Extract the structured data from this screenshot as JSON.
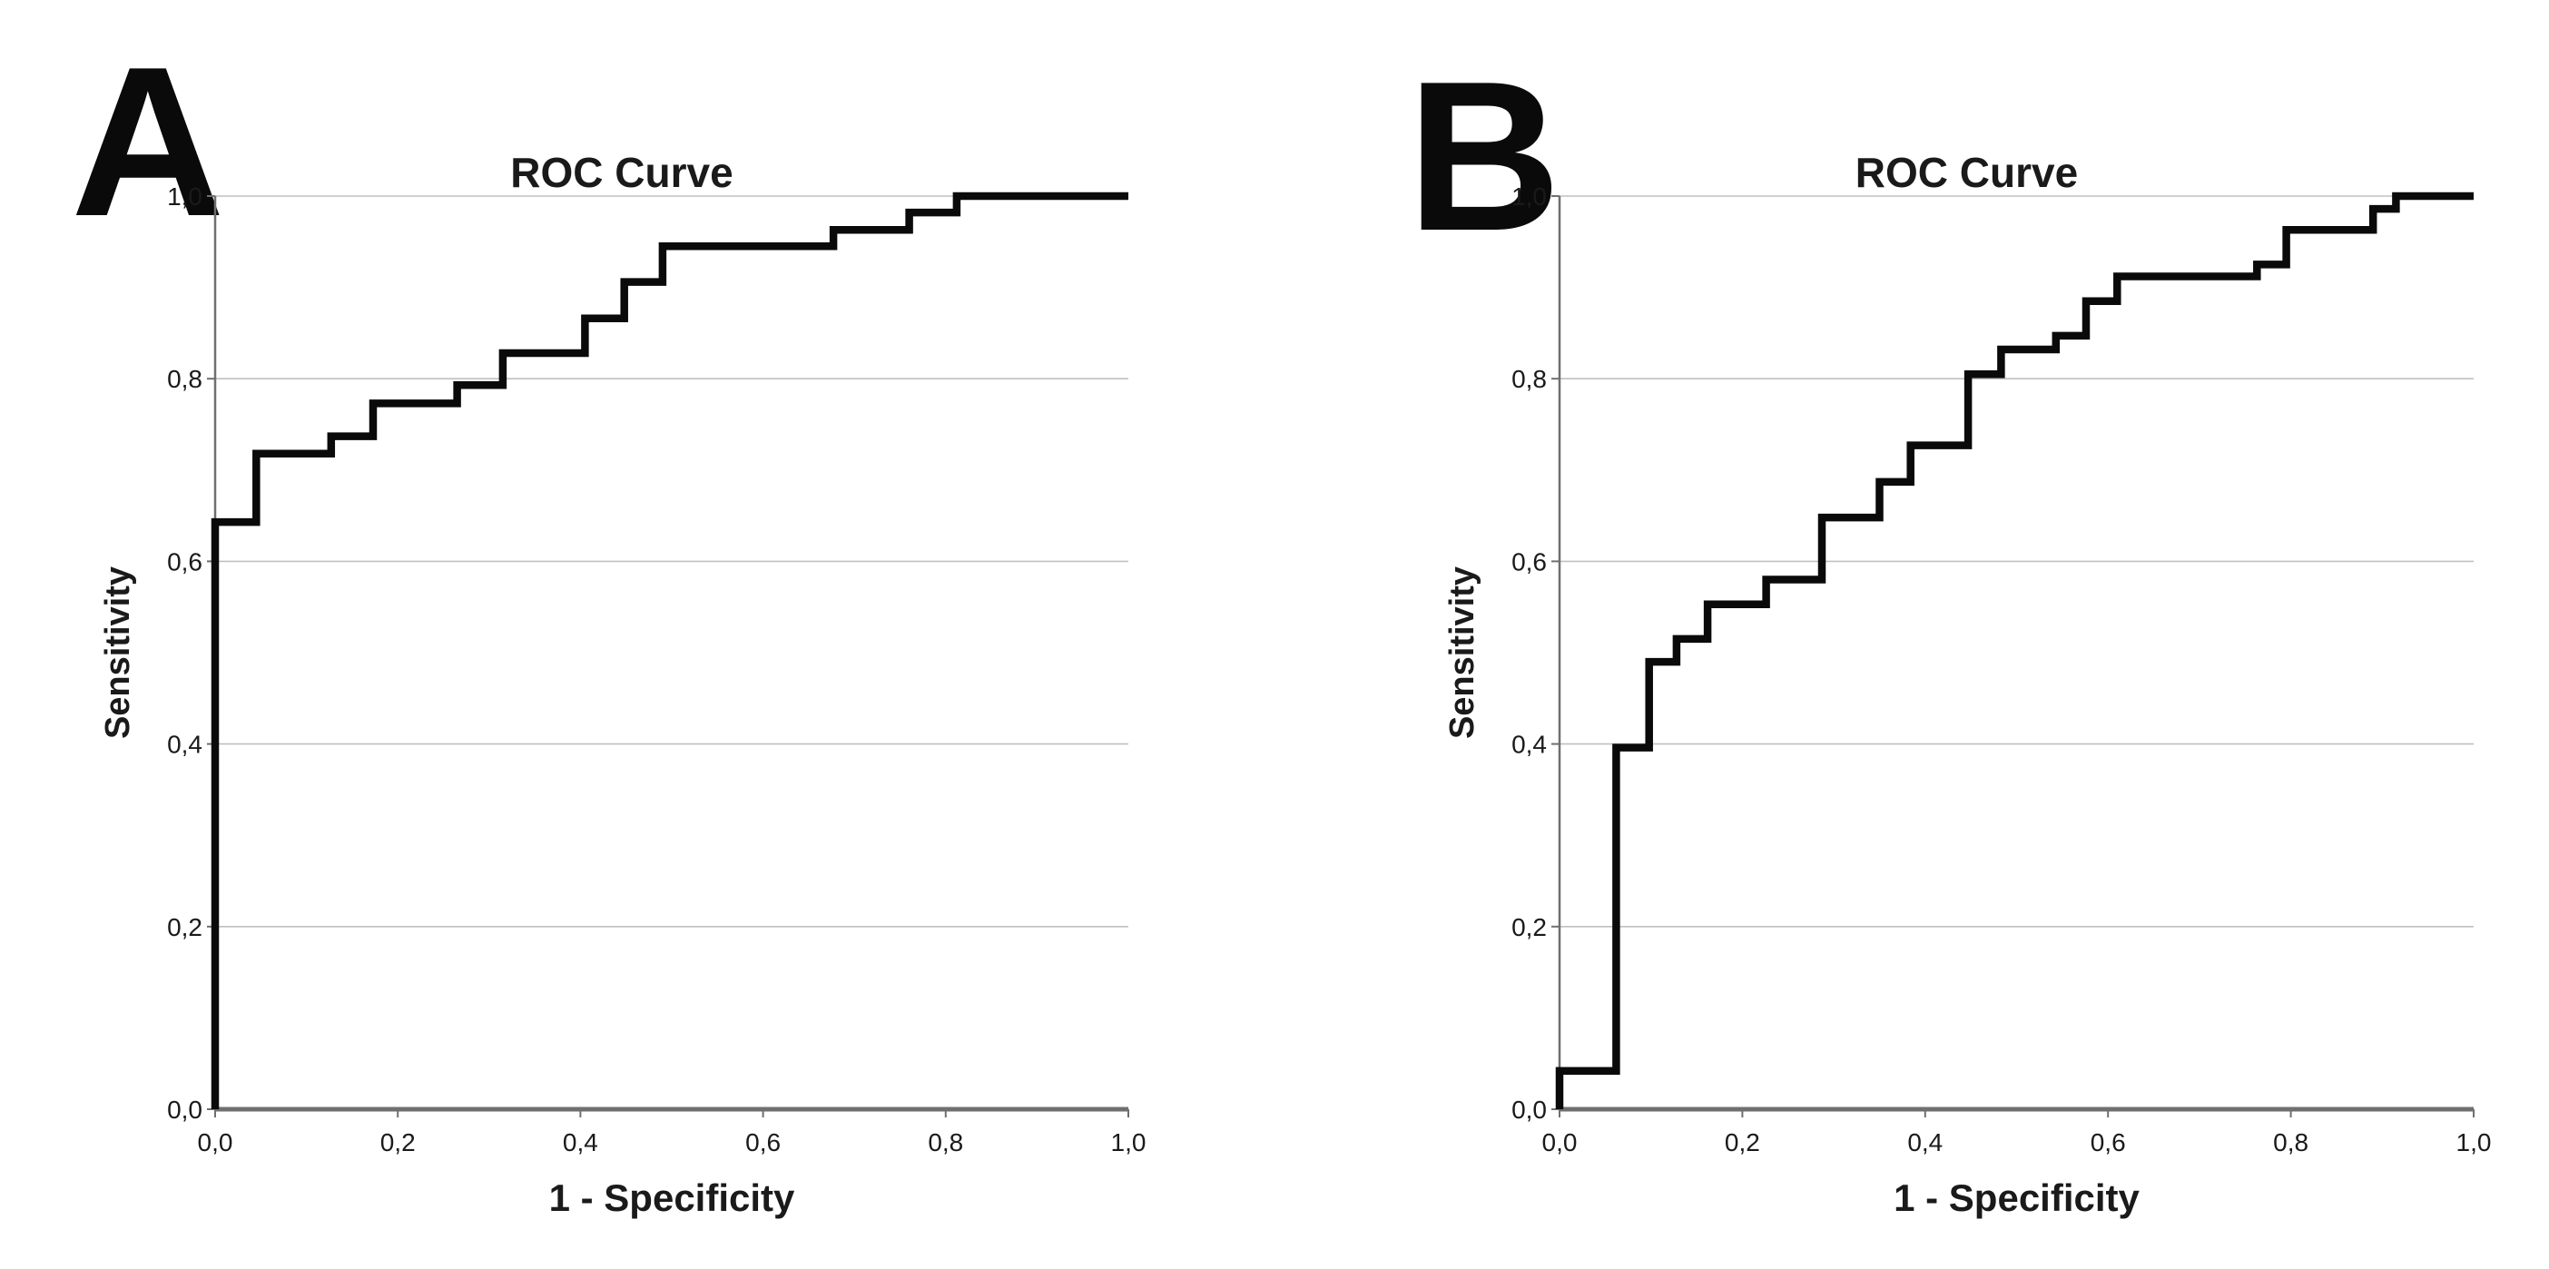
{
  "figure": {
    "background": "#ffffff",
    "colors": {
      "curve": "#0a0a0a",
      "axis": "#6f6f6f",
      "grid": "#c0c0c0",
      "text": "#1a1a1a"
    }
  },
  "chart_data": [
    {
      "panel": "A",
      "type": "line",
      "subtype": "roc-step-curve",
      "title": "ROC Curve",
      "xlabel": "1 - Specificity",
      "ylabel": "Sensitivity",
      "xlim": [
        0,
        1
      ],
      "ylim": [
        0,
        1
      ],
      "tick_values": [
        0,
        0.2,
        0.4,
        0.6,
        0.8,
        1.0
      ],
      "xtick_labels": [
        "0,0",
        "0,2",
        "0,4",
        "0,6",
        "0,8",
        "1,0"
      ],
      "ytick_labels": [
        "0,0",
        "0,2",
        "0,4",
        "0,6",
        "0,8",
        "1,0"
      ],
      "grid": "horizontal gridlines every 0.2",
      "legend": "none",
      "curve": {
        "x": [
          0,
          0,
          0.045,
          0.045,
          0.127,
          0.127,
          0.173,
          0.173,
          0.265,
          0.265,
          0.315,
          0.315,
          0.405,
          0.405,
          0.448,
          0.448,
          0.49,
          0.49,
          0.677,
          0.677,
          0.76,
          0.76,
          0.812,
          0.812,
          1.0
        ],
        "y": [
          0,
          0.643,
          0.643,
          0.718,
          0.718,
          0.737,
          0.737,
          0.773,
          0.773,
          0.793,
          0.793,
          0.828,
          0.828,
          0.866,
          0.866,
          0.906,
          0.906,
          0.945,
          0.945,
          0.963,
          0.963,
          0.982,
          0.982,
          1.0,
          1.0
        ]
      }
    },
    {
      "panel": "B",
      "type": "line",
      "subtype": "roc-step-curve",
      "title": "ROC Curve",
      "xlabel": "1 - Specificity",
      "ylabel": "Sensitivity",
      "xlim": [
        0,
        1
      ],
      "ylim": [
        0,
        1
      ],
      "tick_values": [
        0,
        0.2,
        0.4,
        0.6,
        0.8,
        1.0
      ],
      "xtick_labels": [
        "0,0",
        "0,2",
        "0,4",
        "0,6",
        "0,8",
        "1,0"
      ],
      "ytick_labels": [
        "0,0",
        "0,2",
        "0,4",
        "0,6",
        "0,8",
        "1,0"
      ],
      "grid": "horizontal gridlines every 0.2",
      "legend": "none",
      "curve": {
        "x": [
          0,
          0,
          0.062,
          0.062,
          0.098,
          0.098,
          0.128,
          0.128,
          0.162,
          0.162,
          0.226,
          0.226,
          0.287,
          0.287,
          0.35,
          0.35,
          0.384,
          0.384,
          0.447,
          0.447,
          0.483,
          0.483,
          0.543,
          0.543,
          0.576,
          0.576,
          0.61,
          0.61,
          0.763,
          0.763,
          0.795,
          0.795,
          0.89,
          0.89,
          0.915,
          0.915,
          1.0
        ],
        "y": [
          0,
          0.042,
          0.042,
          0.396,
          0.396,
          0.49,
          0.49,
          0.515,
          0.515,
          0.553,
          0.553,
          0.58,
          0.58,
          0.648,
          0.648,
          0.687,
          0.687,
          0.727,
          0.727,
          0.805,
          0.805,
          0.832,
          0.832,
          0.847,
          0.847,
          0.885,
          0.885,
          0.912,
          0.912,
          0.925,
          0.925,
          0.963,
          0.963,
          0.986,
          0.986,
          1.0,
          1.0
        ]
      }
    }
  ]
}
